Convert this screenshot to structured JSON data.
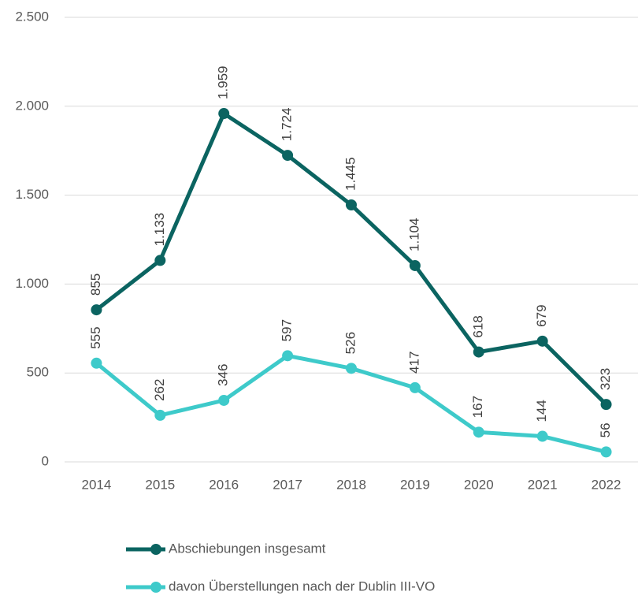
{
  "chart_data": {
    "type": "line",
    "categories": [
      "2014",
      "2015",
      "2016",
      "2017",
      "2018",
      "2019",
      "2020",
      "2021",
      "2022"
    ],
    "series": [
      {
        "name": "Abschiebungen insgesamt",
        "color": "#0b6461",
        "values": [
          855,
          1133,
          1959,
          1724,
          1445,
          1104,
          618,
          679,
          323
        ],
        "value_labels": [
          "855",
          "1.133",
          "1.959",
          "1.724",
          "1.445",
          "1.104",
          "618",
          "679",
          "323"
        ]
      },
      {
        "name": "davon Überstellungen nach der Dublin III-VO",
        "color": "#3ecaca",
        "values": [
          555,
          262,
          346,
          597,
          526,
          417,
          167,
          144,
          56
        ]
      }
    ],
    "ylim": [
      0,
      2500
    ],
    "yticks": [
      0,
      {
        "value": 500,
        "label": "500"
      },
      {
        "value": 1000,
        "label": "1.000"
      },
      {
        "value": 1500,
        "label": "1.500"
      },
      {
        "value": 2000,
        "label": "2.000"
      },
      {
        "value": 2500,
        "label": "2.500"
      }
    ],
    "grid": true,
    "legend": "bottom"
  }
}
